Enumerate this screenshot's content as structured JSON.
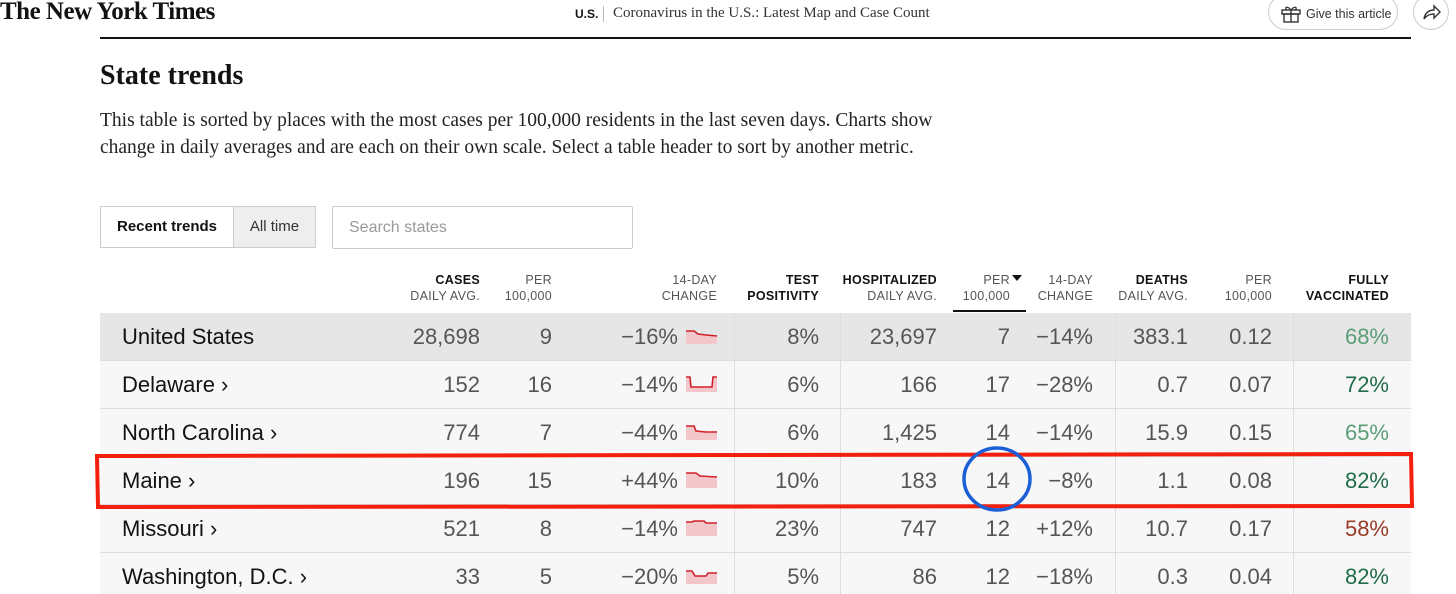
{
  "header": {
    "logo": "The New York Times",
    "section": "U.S.",
    "headline": "Coronavirus in the U.S.: Latest Map and Case Count",
    "share_button": "Give this article"
  },
  "title": "State trends",
  "description": "This table is sorted by places with the most cases per 100,000 residents in the last seven days. Charts show change in daily averages and are each on their own scale. Select a table header to sort by another metric.",
  "tabs": [
    "Recent trends",
    "All time"
  ],
  "search_placeholder": "Search states",
  "table": {
    "columns": [
      [
        "CASES",
        "DAILY AVG."
      ],
      [
        "PER",
        "100,000"
      ],
      [
        "14-DAY",
        "CHANGE"
      ],
      [
        "TEST",
        "POSITIVITY"
      ],
      [
        "HOSPITALIZED",
        "DAILY AVG."
      ],
      [
        "PER",
        "100,000"
      ],
      [
        "14-DAY",
        "CHANGE"
      ],
      [
        "DEATHS",
        "DAILY AVG."
      ],
      [
        "PER",
        "100,000"
      ],
      [
        "FULLY",
        "VACCINATED"
      ]
    ],
    "rows": [
      {
        "name": "United States",
        "cells": [
          "28,698",
          "9",
          "−16%",
          "8%",
          "23,697",
          "7",
          "−14%",
          "383.1",
          "0.12",
          "68%"
        ],
        "vaccinated_color": "#5a9e76"
      },
      {
        "name": "Delaware ›",
        "cells": [
          "152",
          "16",
          "−14%",
          "6%",
          "166",
          "17",
          "−28%",
          "0.7",
          "0.07",
          "72%"
        ],
        "vaccinated_color": "#1f6b4a"
      },
      {
        "name": "North Carolina ›",
        "cells": [
          "774",
          "7",
          "−44%",
          "6%",
          "1,425",
          "14",
          "−14%",
          "15.9",
          "0.15",
          "65%"
        ],
        "vaccinated_color": "#5a9e76"
      },
      {
        "name": "Maine ›",
        "cells": [
          "196",
          "15",
          "+44%",
          "10%",
          "183",
          "14",
          "−8%",
          "1.1",
          "0.08",
          "82%"
        ],
        "vaccinated_color": "#1f6b4a"
      },
      {
        "name": "Missouri ›",
        "cells": [
          "521",
          "8",
          "−14%",
          "23%",
          "747",
          "12",
          "+12%",
          "10.7",
          "0.17",
          "58%"
        ],
        "vaccinated_color": "#9a3b26"
      },
      {
        "name": "Washington, D.C. ›",
        "cells": [
          "33",
          "5",
          "−20%",
          "5%",
          "86",
          "12",
          "−18%",
          "0.3",
          "0.04",
          "82%"
        ],
        "vaccinated_color": "#1f6b4a"
      }
    ]
  }
}
